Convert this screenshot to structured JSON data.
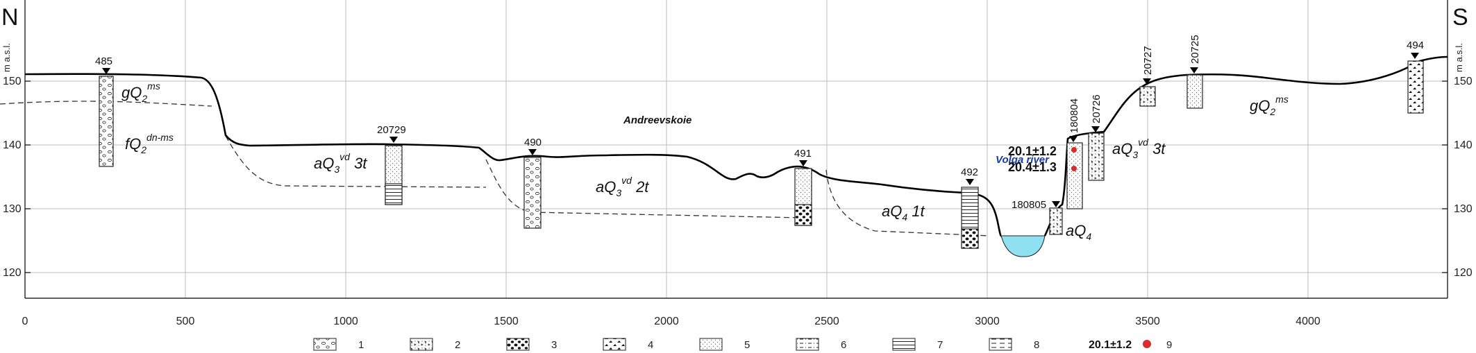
{
  "header": {
    "left_letter": "N",
    "right_letter": "S",
    "y_unit_left": "m a.s.l.",
    "y_unit_right": "m a.s.l."
  },
  "axes": {
    "x_ticks": [
      "0",
      "500",
      "1000",
      "1500",
      "2000",
      "2500",
      "3000",
      "3500",
      "4000"
    ],
    "y_ticks": [
      "150",
      "140",
      "130",
      "120"
    ]
  },
  "colors": {
    "river": "#8fe0f0",
    "date_dot": "#d92b2b",
    "line": "#000000"
  },
  "labels": {
    "village": "Andreevskoie",
    "river": "Volga river",
    "date1": "20.1±1.2",
    "date2": "20.4±1.3"
  },
  "boreholes": [
    {
      "id": "485"
    },
    {
      "id": "20729"
    },
    {
      "id": "490"
    },
    {
      "id": "491"
    },
    {
      "id": "492"
    },
    {
      "id": "180805"
    },
    {
      "id": "180804"
    },
    {
      "id": "20726"
    },
    {
      "id": "20727"
    },
    {
      "id": "20725"
    },
    {
      "id": "494"
    }
  ],
  "units": [
    {
      "base": "gQ",
      "sub": "2",
      "sup": "ms",
      "suffix": ""
    },
    {
      "base": "fQ",
      "sub": "2",
      "sup": "dn-ms",
      "suffix": ""
    },
    {
      "base": "aQ",
      "sub": "3",
      "sup": "vd",
      "suffix": " 3t"
    },
    {
      "base": "aQ",
      "sub": "3",
      "sup": "vd",
      "suffix": " 2t"
    },
    {
      "base": "aQ",
      "sub": "4",
      "sup": "",
      "suffix": " 1t"
    },
    {
      "base": "aQ",
      "sub": "4",
      "sup": "",
      "suffix": ""
    },
    {
      "base": "aQ",
      "sub": "3",
      "sup": "vd",
      "suffix": " 3t"
    },
    {
      "base": "gQ",
      "sub": "2",
      "sup": "ms",
      "suffix": ""
    }
  ],
  "legend": [
    {
      "num": "1",
      "pattern": "pebbles"
    },
    {
      "num": "2",
      "pattern": "gravel"
    },
    {
      "num": "3",
      "pattern": "black-stones"
    },
    {
      "num": "4",
      "pattern": "angular"
    },
    {
      "num": "5",
      "pattern": "sand"
    },
    {
      "num": "6",
      "pattern": "dashdot"
    },
    {
      "num": "7",
      "pattern": "lines"
    },
    {
      "num": "8",
      "pattern": "dashes"
    },
    {
      "num": "9",
      "label": "20.1±1.2",
      "pattern": "dot"
    }
  ]
}
